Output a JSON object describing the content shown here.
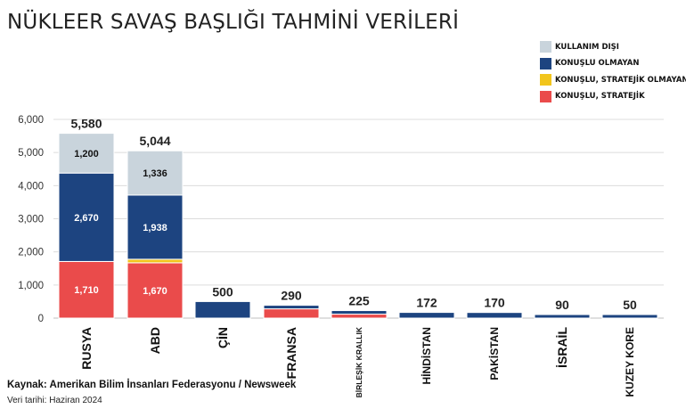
{
  "title": "NÜKLEER SAVAŞ BAŞLIĞI TAHMİNİ VERİLERİ",
  "source": "Kaynak: Amerikan Bilim İnsanları Federasyonu / Newsweek",
  "date_note": "Veri tarihi: Haziran 2024",
  "chart_data": {
    "type": "bar",
    "stacked": true,
    "title": "NÜKLEER SAVAŞ BAŞLIĞI TAHMİNİ VERİLERİ",
    "xlabel": "",
    "ylabel": "",
    "ylim": [
      0,
      6000
    ],
    "yticks": [
      0,
      1000,
      2000,
      3000,
      4000,
      5000,
      6000
    ],
    "ytick_labels": [
      "0",
      "1,000",
      "2,000",
      "3,000",
      "4,000",
      "5,000",
      "6,000"
    ],
    "grid": true,
    "legend_position": "top-right",
    "categories": [
      "RUSYA",
      "ABD",
      "ÇİN",
      "FRANSA",
      "BİRLEŞİK KRALLIK",
      "HİNDİSTAN",
      "PAKİSTAN",
      "İSRAİL",
      "KUZEY KORE"
    ],
    "category_label_size": [
      "large",
      "large",
      "large",
      "large",
      "small",
      "medium",
      "medium",
      "large",
      "medium"
    ],
    "totals": [
      5580,
      5044,
      500,
      290,
      225,
      172,
      170,
      90,
      50
    ],
    "total_labels": [
      "5,580",
      "5,044",
      "500",
      "290",
      "225",
      "172",
      "170",
      "90",
      "50"
    ],
    "legend_order": [
      "KULLANIM DIŞI",
      "KONUŞLU OLMAYAN",
      "KONUŞLU, STRATEJİK OLMAYAN",
      "KONUŞLU, STRATEJİK"
    ],
    "series": [
      {
        "name": "KONUŞLU, STRATEJİK",
        "color": "#ea4b4b",
        "values": [
          1710,
          1670,
          0,
          280,
          120,
          0,
          0,
          0,
          0
        ],
        "labels": [
          "1,710",
          "1,670",
          "",
          "",
          "",
          "",
          "",
          "",
          ""
        ]
      },
      {
        "name": "KONUŞLU, STRATEJİK OLMAYAN",
        "color": "#f2c51c",
        "values": [
          0,
          100,
          0,
          0,
          0,
          0,
          0,
          0,
          0
        ],
        "labels": [
          "",
          "",
          "",
          "",
          "",
          "",
          "",
          "",
          ""
        ]
      },
      {
        "name": "KONUŞLU OLMAYAN",
        "color": "#1d4480",
        "values": [
          2670,
          1938,
          500,
          10,
          105,
          172,
          170,
          90,
          50
        ],
        "labels": [
          "2,670",
          "1,938",
          "",
          "",
          "",
          "",
          "",
          "",
          ""
        ]
      },
      {
        "name": "KULLANIM DIŞI",
        "color": "#c9d4dc",
        "values": [
          1200,
          1336,
          0,
          0,
          0,
          0,
          0,
          0,
          0
        ],
        "labels": [
          "1,200",
          "1,336",
          "",
          "",
          "",
          "",
          "",
          "",
          ""
        ]
      }
    ]
  }
}
